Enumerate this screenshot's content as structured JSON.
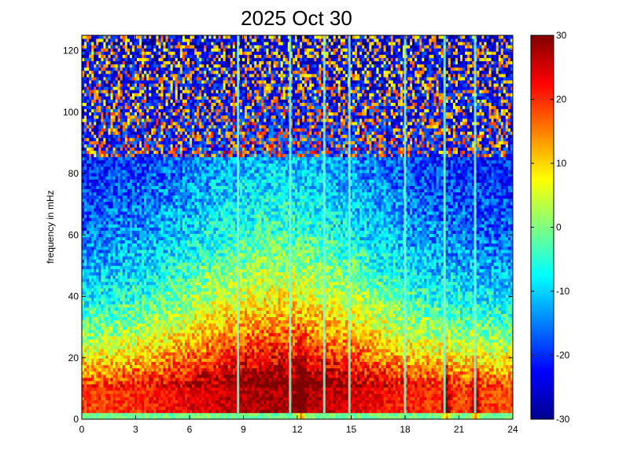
{
  "chart_data": {
    "type": "heatmap",
    "title": "2025 Oct 30",
    "xlabel": "",
    "ylabel": "frequency in mHz",
    "x_ticks": [
      "0",
      "3",
      "6",
      "9",
      "12",
      "15",
      "18",
      "21",
      "24"
    ],
    "y_ticks": [
      "0",
      "20",
      "40",
      "60",
      "80",
      "100",
      "120"
    ],
    "colorbar_ticks": [
      "30",
      "20",
      "10",
      "0",
      "-10",
      "-20",
      "-30"
    ],
    "xlim": [
      0,
      24
    ],
    "ylim": [
      0,
      125
    ],
    "clim": [
      -30,
      30
    ],
    "colormap": "jet",
    "grid": false,
    "colorbar": "right",
    "bright_vertical_lines_hours": [
      8.7,
      11.6,
      13.5,
      14.9,
      18.0,
      20.2,
      21.9
    ],
    "high_power_bursts_hours": [
      12.2,
      20.3,
      21.9
    ]
  }
}
